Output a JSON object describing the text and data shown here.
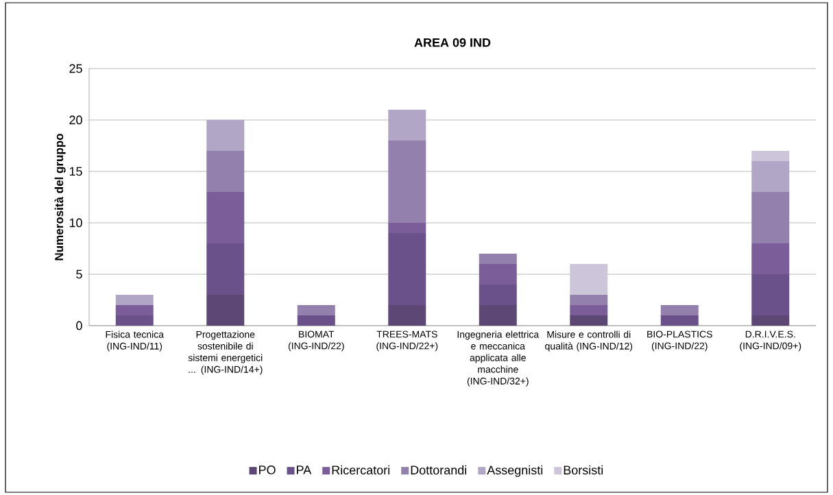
{
  "chart_data": {
    "type": "bar",
    "stacked": true,
    "title": "AREA 09 IND",
    "ylabel": "Numerosità del gruppo",
    "categories": [
      "Fisica tecnica (ING-IND/11)",
      "Progettazione sostenibile di sistemi energetici ... (ING-IND/14+)",
      "BIOMAT (ING-IND/22)",
      "TREES-MATS (ING-IND/22+)",
      "Ingegneria elettrica e meccanica applicata alle macchine (ING-IND/32+)",
      "Misure e controlli di qualità (ING-IND/12)",
      "BIO-PLASTICS (ING-IND/22)",
      "D.R.I.V.E.S. (ING-IND/09+)"
    ],
    "series": [
      {
        "name": "PO",
        "color": "#5c4775",
        "values": [
          0,
          3,
          0,
          2,
          2,
          1,
          0,
          1
        ]
      },
      {
        "name": "PA",
        "color": "#6b5189",
        "values": [
          1,
          5,
          1,
          7,
          2,
          0,
          1,
          4
        ]
      },
      {
        "name": "Ricercatori",
        "color": "#7b5e99",
        "values": [
          1,
          5,
          0,
          1,
          2,
          1,
          0,
          3
        ]
      },
      {
        "name": "Dottorandi",
        "color": "#9380ad",
        "values": [
          0,
          4,
          1,
          8,
          1,
          1,
          1,
          5
        ]
      },
      {
        "name": "Assegnisti",
        "color": "#b2a6c6",
        "values": [
          1,
          3,
          0,
          3,
          0,
          0,
          0,
          3
        ]
      },
      {
        "name": "Borsisti",
        "color": "#cdc5d9",
        "values": [
          0,
          0,
          0,
          0,
          0,
          3,
          0,
          1
        ]
      }
    ],
    "ylim": [
      0,
      25
    ],
    "yticks": [
      0,
      5,
      10,
      15,
      20,
      25
    ],
    "grid": "y",
    "legend": "bottom"
  }
}
